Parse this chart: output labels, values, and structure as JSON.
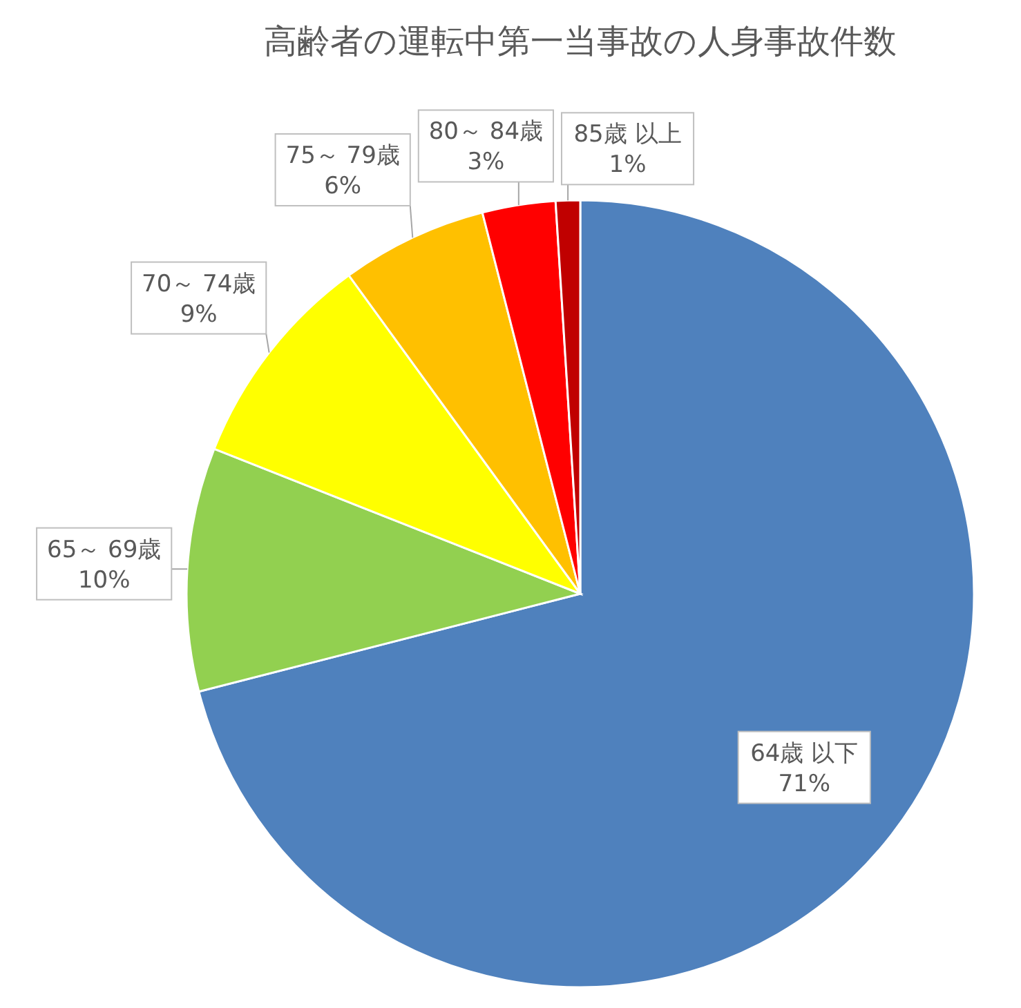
{
  "chart_data": {
    "type": "pie",
    "title": "高齢者の運転中第一当事故の人身事故件数",
    "categories": [
      "64歳 以下",
      "65～ 69歳",
      "70～ 74歳",
      "75～ 79歳",
      "80～ 84歳",
      "85歳 以上"
    ],
    "values": [
      71,
      10,
      9,
      6,
      3,
      1
    ],
    "value_labels": [
      "71%",
      "10%",
      "9%",
      "6%",
      "3%",
      "1%"
    ],
    "colors": [
      "#4f81bd",
      "#92d050",
      "#ffff00",
      "#ffc000",
      "#ff0000",
      "#c00000"
    ]
  }
}
